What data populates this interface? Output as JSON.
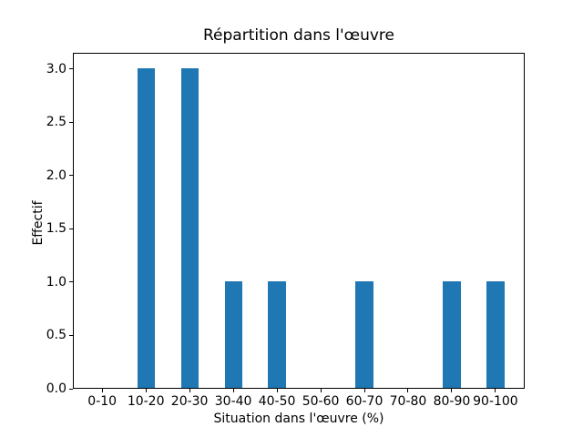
{
  "chart_data": {
    "type": "bar",
    "title": "Répartition dans l'œuvre",
    "xlabel": "Situation dans l'œuvre (%)",
    "ylabel": "Effectif",
    "categories": [
      "0-10",
      "10-20",
      "20-30",
      "30-40",
      "40-50",
      "50-60",
      "60-70",
      "70-80",
      "80-90",
      "90-100"
    ],
    "values": [
      0,
      3,
      3,
      1,
      1,
      0,
      1,
      0,
      1,
      1
    ],
    "ytick_labels": [
      "0.0",
      "0.5",
      "1.0",
      "1.5",
      "2.0",
      "2.5",
      "3.0"
    ],
    "ylim": [
      0,
      3.15
    ],
    "bar_color": "#1f77b4",
    "axis_color": "#000000",
    "background_color": "#ffffff",
    "grid": false,
    "legend": "none"
  }
}
